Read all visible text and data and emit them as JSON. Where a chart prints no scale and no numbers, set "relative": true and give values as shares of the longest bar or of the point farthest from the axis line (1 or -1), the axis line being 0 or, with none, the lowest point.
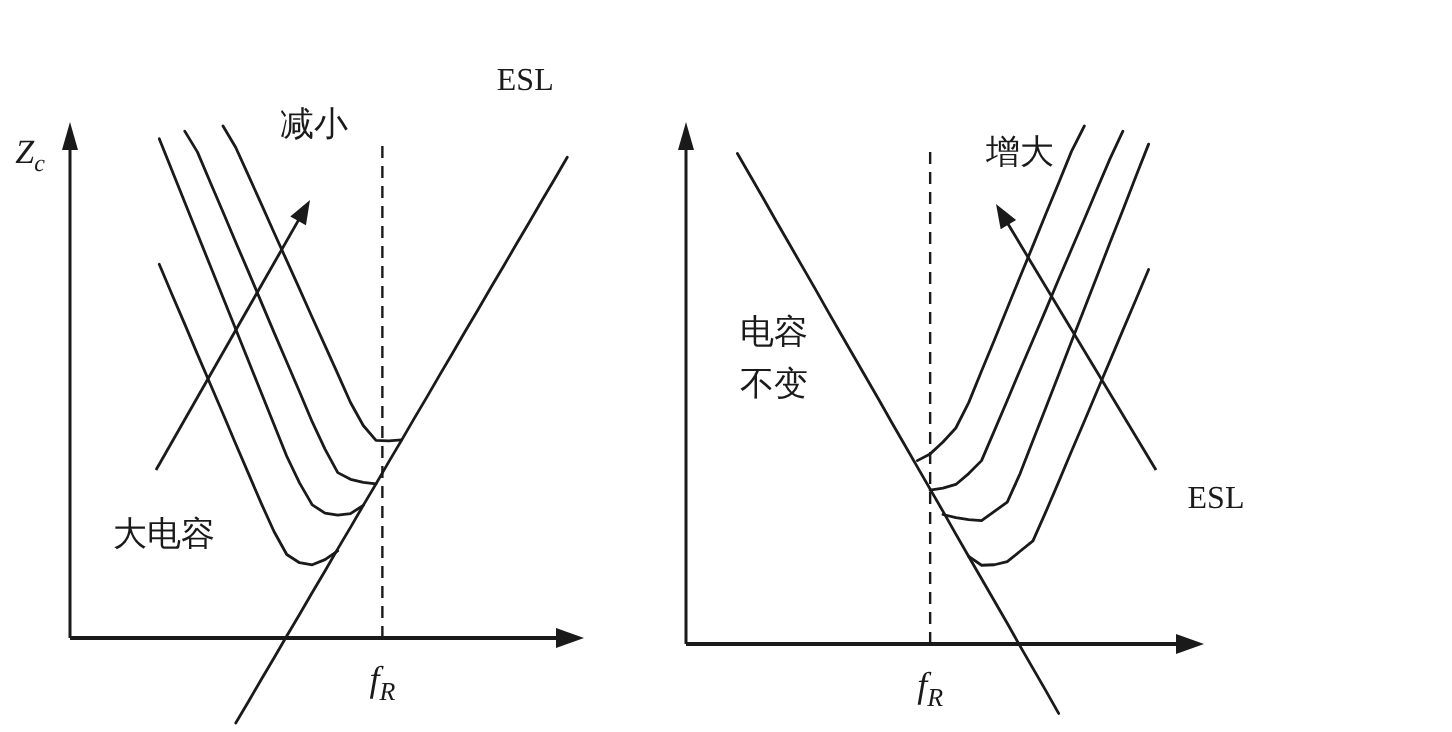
{
  "chart_data": [
    {
      "type": "line",
      "relative": true,
      "ylabel": "Z$_{c}$",
      "marker": "none",
      "line_style": "solid",
      "categories": [
        null,
        null,
        null,
        null,
        null,
        null,
        null,
        null,
        null,
        null,
        null,
        null,
        null,
        null,
        null,
        null,
        null,
        null,
        null,
        null,
        null,
        null,
        null,
        null,
        null,
        null,
        null,
        null,
        null,
        null,
        null,
        null,
        null,
        null,
        null,
        null,
        null,
        null,
        null,
        null,
        null
      ],
      "series": [
        {
          "color": "#1a1a1a",
          "values": [
            null,
            null,
            null,
            null,
            null,
            null,
            null,
            0.73,
            0.671,
            0.613,
            0.554,
            0.496,
            0.438,
            0.379,
            0.321,
            0.263,
            0.208,
            0.163,
            0.147,
            0.143,
            0.153,
            0.17,
            null,
            null,
            null,
            null,
            null,
            null,
            null,
            null,
            null,
            null,
            null,
            null,
            null,
            null,
            null,
            null,
            null,
            null,
            null
          ]
        },
        {
          "color": "#1a1a1a",
          "values": [
            null,
            null,
            null,
            null,
            null,
            null,
            null,
            0.975,
            0.913,
            0.851,
            0.789,
            0.727,
            0.665,
            0.603,
            0.541,
            0.479,
            0.417,
            0.355,
            0.303,
            0.26,
            0.244,
            0.24,
            0.243,
            0.259,
            null,
            null,
            null,
            null,
            null,
            null,
            null,
            null,
            null,
            null,
            null,
            null,
            null,
            null,
            null,
            null,
            null
          ]
        },
        {
          "color": "#1a1a1a",
          "values": [
            null,
            null,
            null,
            null,
            null,
            null,
            null,
            null,
            null,
            0.99,
            0.949,
            0.89,
            0.832,
            0.773,
            0.715,
            0.656,
            0.597,
            0.539,
            0.481,
            0.422,
            0.369,
            0.323,
            0.31,
            0.304,
            0.301,
            null,
            null,
            null,
            null,
            null,
            null,
            null,
            null,
            null,
            null,
            null,
            null,
            null,
            null,
            null,
            null
          ]
        },
        {
          "color": "#1a1a1a",
          "values": [
            null,
            null,
            null,
            null,
            null,
            null,
            null,
            null,
            null,
            null,
            null,
            null,
            1,
            0.958,
            0.903,
            0.848,
            0.792,
            0.737,
            0.682,
            0.626,
            0.571,
            0.516,
            0.46,
            0.415,
            0.386,
            0.385,
            0.387,
            null,
            null,
            null,
            null,
            null,
            null,
            null,
            null,
            null,
            null,
            null,
            null,
            null,
            null
          ]
        },
        {
          "name": "ESL",
          "color": "#1a1a1a",
          "values": [
            null,
            null,
            null,
            null,
            null,
            null,
            null,
            null,
            null,
            null,
            null,
            null,
            null,
            -0.166,
            -0.124,
            -0.081,
            -0.039,
            0.004,
            0.046,
            0.089,
            0.131,
            0.174,
            0.216,
            0.259,
            0.301,
            0.344,
            0.386,
            0.429,
            0.471,
            0.514,
            0.556,
            0.599,
            0.641,
            0.684,
            0.726,
            0.769,
            0.811,
            0.854,
            0.896,
            0.939,
            null
          ]
        }
      ],
      "ref_lines": [
        {
          "axis": "x",
          "label": "f$_{R}$",
          "line_style": "dashed",
          "color": "#1a1a1a"
        }
      ],
      "annotations": [
        "减小",
        "大电容"
      ]
    },
    {
      "type": "line",
      "relative": true,
      "marker": "none",
      "line_style": "solid",
      "categories": [
        null,
        null,
        null,
        null,
        null,
        null,
        null,
        null,
        null,
        null,
        null,
        null,
        null,
        null,
        null,
        null,
        null,
        null,
        null,
        null,
        null,
        null,
        null,
        null,
        null,
        null,
        null,
        null,
        null,
        null,
        null,
        null,
        null,
        null,
        null,
        null,
        null,
        null,
        null,
        null,
        null
      ],
      "series": [
        {
          "color": "#1a1a1a",
          "values": [
            null,
            null,
            null,
            null,
            null,
            null,
            null,
            null,
            null,
            null,
            null,
            null,
            null,
            null,
            null,
            null,
            null,
            null,
            0.354,
            0.367,
            0.39,
            0.417,
            0.466,
            0.527,
            0.587,
            0.648,
            0.709,
            0.769,
            0.83,
            0.89,
            0.951,
            1,
            null,
            null,
            null,
            null,
            null,
            null,
            null,
            null,
            null
          ]
        },
        {
          "color": "#1a1a1a",
          "values": [
            null,
            null,
            null,
            null,
            null,
            null,
            null,
            null,
            null,
            null,
            null,
            null,
            null,
            null,
            null,
            null,
            null,
            null,
            null,
            0.297,
            0.301,
            0.308,
            0.329,
            0.354,
            0.412,
            0.47,
            0.529,
            0.587,
            0.645,
            0.704,
            0.762,
            0.82,
            0.879,
            0.937,
            0.99,
            null,
            null,
            null,
            null,
            null,
            null
          ]
        },
        {
          "color": "#1a1a1a",
          "values": [
            null,
            null,
            null,
            null,
            null,
            null,
            null,
            null,
            null,
            null,
            null,
            null,
            null,
            null,
            null,
            null,
            null,
            null,
            null,
            null,
            0.25,
            0.244,
            0.24,
            0.238,
            0.256,
            0.274,
            0.329,
            0.393,
            0.456,
            0.52,
            0.584,
            0.647,
            0.711,
            0.775,
            0.838,
            0.902,
            0.965,
            null,
            null,
            null,
            null
          ]
        },
        {
          "color": "#1a1a1a",
          "values": [
            null,
            null,
            null,
            null,
            null,
            null,
            null,
            null,
            null,
            null,
            null,
            null,
            null,
            null,
            null,
            null,
            null,
            null,
            null,
            null,
            null,
            null,
            0.169,
            0.152,
            0.153,
            0.159,
            0.179,
            0.199,
            0.255,
            0.313,
            0.372,
            0.43,
            0.489,
            0.547,
            0.606,
            0.664,
            0.723,
            null,
            null,
            null,
            null
          ]
        },
        {
          "color": "#1a1a1a",
          "values": [
            null,
            null,
            null,
            null,
            0.947,
            0.904,
            0.861,
            0.817,
            0.774,
            0.731,
            0.688,
            0.644,
            0.601,
            0.558,
            0.515,
            0.472,
            0.428,
            0.385,
            0.342,
            0.299,
            0.256,
            0.212,
            0.169,
            0.126,
            0.083,
            0.04,
            -0.004,
            -0.047,
            -0.09,
            -0.134,
            null,
            null,
            null,
            null,
            null,
            null,
            null,
            null,
            null,
            null,
            null
          ]
        }
      ],
      "ref_lines": [
        {
          "axis": "x",
          "label": "f$_{R}$",
          "line_style": "dashed",
          "color": "#1a1a1a"
        }
      ],
      "annotations": [
        "增大",
        "电容不变",
        "ESL"
      ]
    }
  ]
}
